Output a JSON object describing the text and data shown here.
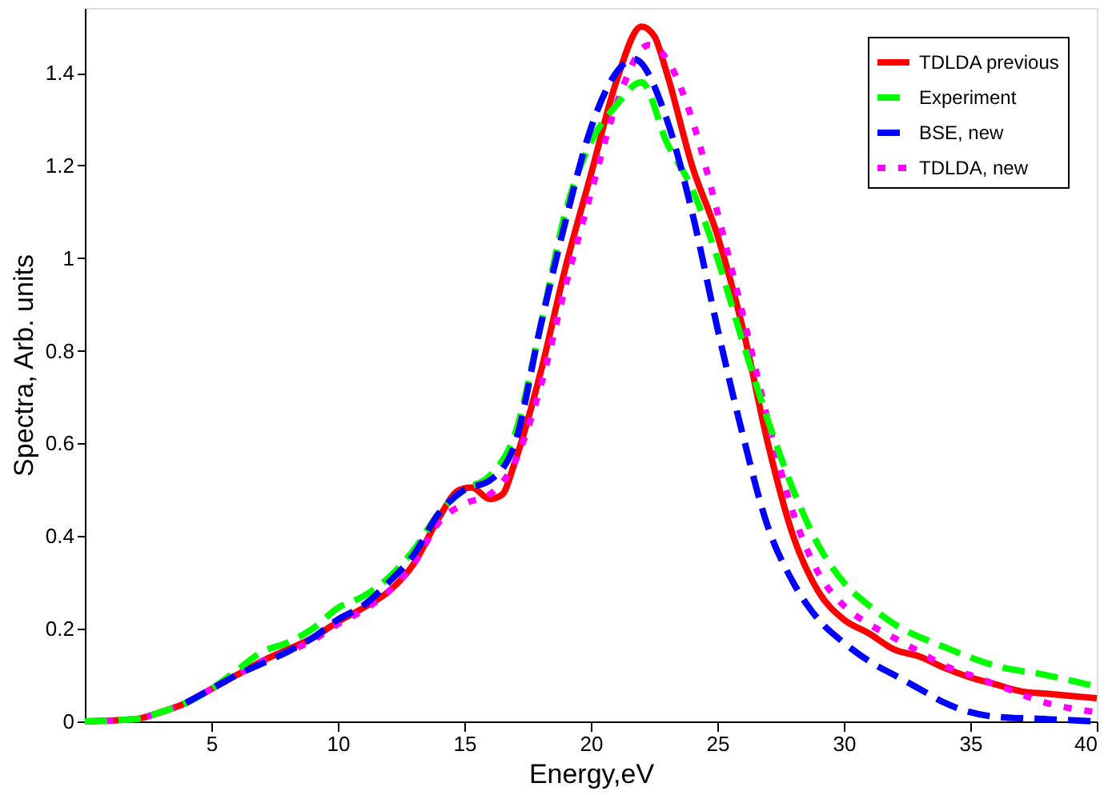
{
  "chart_data": {
    "type": "line",
    "xlabel": "Energy,eV",
    "ylabel": "Spectra, Arb. units",
    "xlim": [
      0,
      40
    ],
    "xticks": [
      5,
      10,
      15,
      20,
      25,
      30,
      35,
      40
    ],
    "ylim": [
      0,
      1.54
    ],
    "yticks": [
      0,
      0.2,
      0.4,
      0.6,
      0.8,
      1,
      1.2,
      1.4
    ],
    "grid": false,
    "legend": "top right",
    "marker": "none",
    "series": [
      {
        "name": "TDLDA previous",
        "color": "#ff0000",
        "line_style": "solid",
        "x": [
          0,
          2,
          3,
          4,
          5,
          6,
          7,
          8,
          9,
          10,
          11,
          12,
          13,
          14,
          14.8,
          15.3,
          16,
          16.5,
          17,
          18,
          19,
          20,
          21,
          22,
          22.5,
          23,
          24,
          25,
          26,
          27,
          28,
          29,
          30,
          31,
          32,
          33,
          34,
          35,
          36,
          37,
          38,
          39,
          40
        ],
        "values": [
          0,
          0.005,
          0.02,
          0.04,
          0.07,
          0.1,
          0.13,
          0.155,
          0.18,
          0.215,
          0.245,
          0.28,
          0.34,
          0.44,
          0.5,
          0.505,
          0.48,
          0.49,
          0.56,
          0.75,
          0.98,
          1.18,
          1.38,
          1.5,
          1.48,
          1.4,
          1.2,
          1.05,
          0.85,
          0.6,
          0.4,
          0.28,
          0.22,
          0.19,
          0.155,
          0.14,
          0.115,
          0.095,
          0.08,
          0.065,
          0.06,
          0.055,
          0.05
        ]
      },
      {
        "name": "Experiment",
        "color": "#00ff00",
        "line_style": "dashed",
        "x": [
          0,
          2,
          3,
          4,
          5,
          6,
          7,
          8,
          9,
          10,
          11,
          12,
          13,
          14,
          15,
          16,
          17,
          18,
          19,
          20,
          21,
          22,
          23,
          24,
          25,
          26,
          27,
          28,
          29,
          30,
          31,
          32,
          34,
          36,
          38,
          40
        ],
        "values": [
          0,
          0.005,
          0.02,
          0.04,
          0.07,
          0.11,
          0.15,
          0.17,
          0.2,
          0.245,
          0.27,
          0.31,
          0.37,
          0.45,
          0.5,
          0.53,
          0.62,
          0.85,
          1.1,
          1.25,
          1.33,
          1.38,
          1.25,
          1.15,
          1.0,
          0.82,
          0.65,
          0.5,
          0.38,
          0.3,
          0.25,
          0.21,
          0.16,
          0.12,
          0.1,
          0.075
        ]
      },
      {
        "name": "BSE, new",
        "color": "#0000ff",
        "line_style": "dashed",
        "x": [
          4,
          5,
          6,
          7,
          8,
          9,
          10,
          11,
          12,
          13,
          14,
          15,
          16,
          17,
          18,
          19,
          20,
          21,
          21.7,
          23,
          24,
          25,
          26,
          27,
          28,
          29,
          30,
          31,
          32,
          33,
          34,
          35,
          36,
          38,
          40
        ],
        "values": [
          0.04,
          0.07,
          0.1,
          0.125,
          0.15,
          0.18,
          0.22,
          0.25,
          0.3,
          0.36,
          0.45,
          0.5,
          0.52,
          0.6,
          0.85,
          1.08,
          1.28,
          1.4,
          1.43,
          1.3,
          1.1,
          0.85,
          0.62,
          0.42,
          0.3,
          0.22,
          0.17,
          0.13,
          0.1,
          0.07,
          0.04,
          0.02,
          0.01,
          0.005,
          0
        ]
      },
      {
        "name": "TDLDA, new",
        "color": "#ff00ff",
        "line_style": "dotted",
        "x": [
          0,
          2,
          3,
          4,
          5,
          6,
          7,
          8,
          9,
          10,
          11,
          12,
          13,
          14,
          15,
          16,
          17,
          18,
          19,
          20,
          21,
          22.3,
          23,
          24,
          25,
          26,
          27,
          28,
          29,
          30,
          31,
          32,
          33,
          34,
          35,
          36,
          38,
          40
        ],
        "values": [
          0,
          0.005,
          0.02,
          0.04,
          0.07,
          0.1,
          0.13,
          0.15,
          0.175,
          0.21,
          0.24,
          0.28,
          0.34,
          0.43,
          0.47,
          0.49,
          0.56,
          0.72,
          0.94,
          1.14,
          1.33,
          1.46,
          1.43,
          1.3,
          1.1,
          0.88,
          0.65,
          0.45,
          0.32,
          0.25,
          0.21,
          0.18,
          0.15,
          0.12,
          0.1,
          0.08,
          0.04,
          0.02
        ]
      }
    ]
  }
}
